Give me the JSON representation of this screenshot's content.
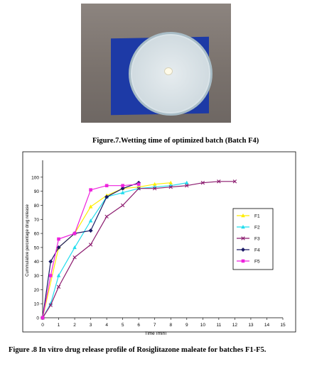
{
  "figure7": {
    "caption": "Figure.7.Wetting time of optimized batch (Batch F4)"
  },
  "figure8": {
    "caption": "Figure .8 In vitro drug release profile of Rosiglitazone maleate for batches F1-F5."
  },
  "chart_data": {
    "type": "line",
    "xlabel": "Time (min)",
    "ylabel": "Cummulative percentage drug release",
    "xlim": [
      0,
      15
    ],
    "ylim": [
      0,
      110
    ],
    "xticks": [
      0,
      1,
      2,
      3,
      4,
      5,
      6,
      7,
      8,
      9,
      10,
      11,
      12,
      13,
      14,
      15
    ],
    "yticks": [
      0,
      10,
      20,
      30,
      40,
      50,
      60,
      70,
      80,
      90,
      100
    ],
    "grid": false,
    "legend": "right",
    "series": [
      {
        "name": "F1",
        "color": "#ffee00",
        "marker": "triangle",
        "x": [
          0,
          1,
          2,
          3,
          4,
          5,
          6,
          7,
          8
        ],
        "y": [
          0,
          50,
          60,
          79,
          87,
          92,
          93,
          95,
          96
        ]
      },
      {
        "name": "F2",
        "color": "#22ddee",
        "marker": "triangle",
        "x": [
          0,
          0.5,
          1,
          2,
          3,
          4,
          5,
          6,
          7,
          8,
          9
        ],
        "y": [
          0,
          10,
          30,
          50,
          69,
          86,
          89,
          92,
          93,
          94,
          96
        ]
      },
      {
        "name": "F3",
        "color": "#8b1a6e",
        "marker": "x",
        "x": [
          0,
          0.5,
          1,
          2,
          3,
          4,
          5,
          6,
          7,
          8,
          9,
          10,
          11,
          12
        ],
        "y": [
          0,
          9,
          22,
          43,
          52,
          72,
          80,
          92,
          92,
          93,
          94,
          96,
          97,
          97
        ]
      },
      {
        "name": "F4",
        "color": "#1a1a66",
        "marker": "diamond",
        "x": [
          0,
          0.5,
          1,
          2,
          3,
          4,
          5,
          6
        ],
        "y": [
          0,
          40,
          50,
          60,
          62,
          86,
          92,
          96
        ]
      },
      {
        "name": "F5",
        "color": "#ee22dd",
        "marker": "square",
        "x": [
          0,
          0.5,
          1,
          2,
          3,
          4,
          5,
          6
        ],
        "y": [
          0,
          30,
          56,
          60,
          91,
          94,
          94,
          95
        ]
      }
    ]
  }
}
